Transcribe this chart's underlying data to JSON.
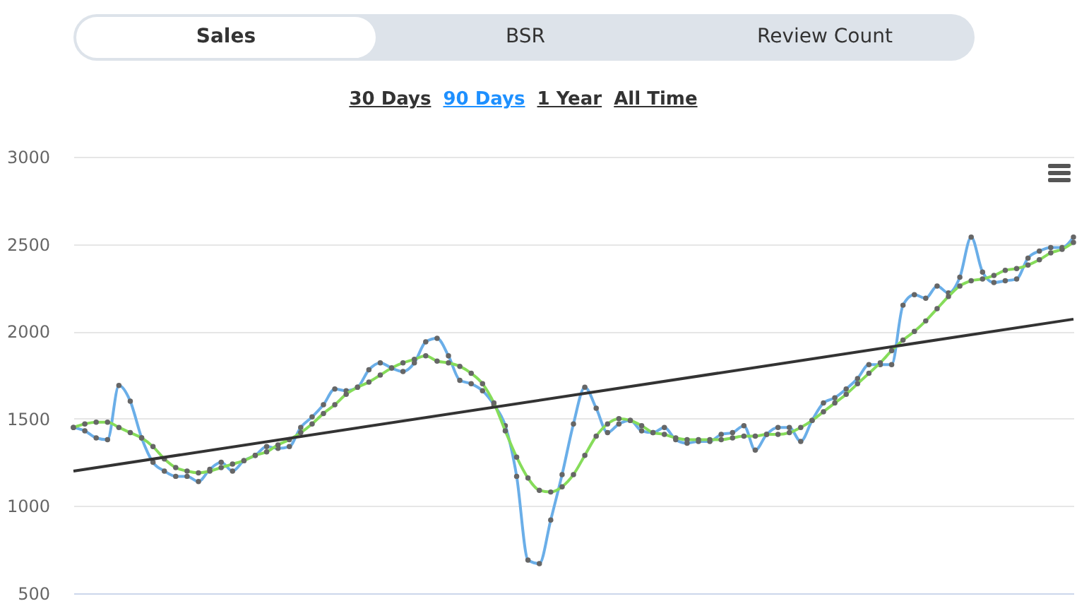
{
  "chart_data": {
    "type": "line",
    "annotations": [
      "Sales",
      "BSR",
      "Review Count",
      "30 Days",
      "90 Days",
      "1 Year",
      "All Time"
    ],
    "categories": [
      null,
      null,
      null,
      null,
      null,
      null,
      null,
      null,
      null,
      null,
      null,
      null,
      null,
      null,
      null,
      null,
      null,
      null,
      null,
      null,
      null,
      null,
      null,
      null,
      null,
      null,
      null,
      null,
      null,
      null,
      null,
      null,
      null,
      null,
      null,
      null,
      null,
      null,
      null,
      null,
      null,
      null,
      null,
      null,
      null,
      null,
      null,
      null,
      null,
      null,
      null,
      null,
      null,
      null,
      null,
      null,
      null,
      null,
      null,
      null,
      null,
      null,
      null,
      null,
      null,
      null,
      null,
      null,
      null,
      null,
      null,
      null,
      null,
      null,
      null,
      null,
      null,
      null,
      null,
      null,
      null,
      null,
      null,
      null,
      null,
      null,
      null,
      null,
      null
    ],
    "series": [
      {
        "color": "#6aaee8",
        "values": [
          1450,
          1430,
          1390,
          1380,
          1690,
          1600,
          1390,
          1250,
          1200,
          1170,
          1170,
          1140,
          1210,
          1250,
          1200,
          1260,
          1290,
          1340,
          1330,
          1340,
          1450,
          1510,
          1580,
          1670,
          1660,
          1680,
          1780,
          1820,
          1790,
          1770,
          1820,
          1940,
          1960,
          1860,
          1720,
          1700,
          1660,
          1580,
          1460,
          1170,
          690,
          670,
          920,
          1180,
          1470,
          1680,
          1560,
          1420,
          1470,
          1490,
          1430,
          1420,
          1450,
          1380,
          1360,
          1370,
          1370,
          1410,
          1420,
          1460,
          1320,
          1410,
          1450,
          1450,
          1370,
          1490,
          1590,
          1620,
          1670,
          1730,
          1810,
          1810,
          1810,
          2150,
          2210,
          2190,
          2260,
          2220,
          2310,
          2540,
          2340,
          2280,
          2290,
          2300,
          2420,
          2460,
          2480,
          2480,
          2540
        ]
      },
      {
        "color": "#86dc5a",
        "values": [
          1450,
          1470,
          1480,
          1480,
          1450,
          1420,
          1390,
          1340,
          1270,
          1220,
          1200,
          1190,
          1200,
          1220,
          1240,
          1260,
          1290,
          1310,
          1350,
          1380,
          1420,
          1470,
          1530,
          1580,
          1640,
          1680,
          1710,
          1750,
          1790,
          1820,
          1840,
          1860,
          1830,
          1820,
          1800,
          1760,
          1700,
          1590,
          1430,
          1280,
          1160,
          1090,
          1080,
          1110,
          1180,
          1290,
          1400,
          1470,
          1500,
          1490,
          1460,
          1420,
          1410,
          1390,
          1380,
          1380,
          1380,
          1380,
          1390,
          1400,
          1400,
          1410,
          1410,
          1420,
          1450,
          1490,
          1540,
          1590,
          1640,
          1700,
          1760,
          1820,
          1890,
          1950,
          2000,
          2060,
          2130,
          2200,
          2260,
          2290,
          2300,
          2320,
          2350,
          2360,
          2380,
          2410,
          2450,
          2470,
          2510
        ]
      },
      {
        "color": "#333333",
        "marker": "none",
        "values": [
          1200,
          null,
          null,
          null,
          null,
          null,
          null,
          null,
          null,
          null,
          null,
          null,
          null,
          null,
          null,
          null,
          null,
          null,
          null,
          null,
          null,
          null,
          null,
          null,
          null,
          null,
          null,
          null,
          null,
          null,
          null,
          null,
          null,
          null,
          null,
          null,
          null,
          null,
          null,
          null,
          null,
          null,
          null,
          null,
          null,
          null,
          null,
          null,
          null,
          null,
          null,
          null,
          null,
          null,
          null,
          null,
          null,
          null,
          null,
          null,
          null,
          null,
          null,
          null,
          null,
          null,
          null,
          null,
          null,
          null,
          null,
          null,
          null,
          null,
          null,
          null,
          null,
          null,
          null,
          null,
          null,
          null,
          null,
          null,
          null,
          null,
          null,
          null,
          2070
        ]
      }
    ],
    "ylim": [
      500,
      3000
    ],
    "yticks": [
      500,
      1000,
      1500,
      2000,
      2500,
      3000
    ],
    "grid": "y",
    "marker": "circle",
    "line_style": "solid"
  }
}
